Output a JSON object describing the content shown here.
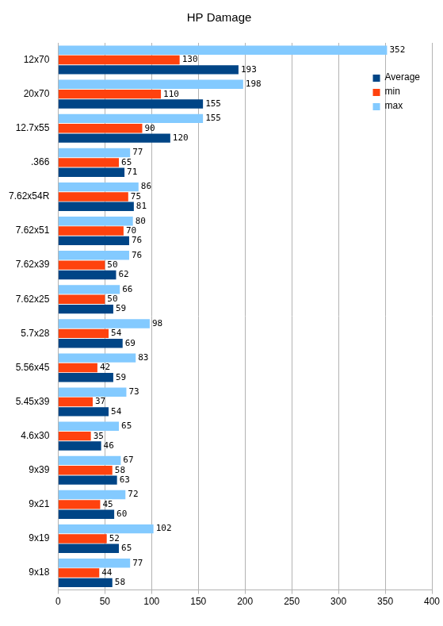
{
  "chart_data": {
    "type": "bar",
    "title": "HP Damage",
    "orientation": "horizontal",
    "categories": [
      "12x70",
      "20x70",
      "12.7x55",
      ".366",
      "7.62x54R",
      "7.62x51",
      "7.62x39",
      "7.62x25",
      "5.7x28",
      "5.56x45",
      "5.45x39",
      "4.6x30",
      "9x39",
      "9x21",
      "9x19",
      "9x18"
    ],
    "series": [
      {
        "name": "Average",
        "color": "#004586",
        "values": [
          193,
          155,
          120,
          71,
          81,
          76,
          62,
          59,
          69,
          59,
          54,
          46,
          63,
          60,
          65,
          58
        ]
      },
      {
        "name": "min",
        "color": "#ff420e",
        "values": [
          130,
          110,
          90,
          65,
          75,
          70,
          50,
          50,
          54,
          42,
          37,
          35,
          58,
          45,
          52,
          44
        ]
      },
      {
        "name": "max",
        "color": "#83caff",
        "values": [
          352,
          198,
          155,
          77,
          86,
          80,
          76,
          66,
          98,
          83,
          73,
          65,
          67,
          72,
          102,
          77
        ]
      }
    ],
    "xlim": [
      0,
      400
    ],
    "xticks": [
      0,
      50,
      100,
      150,
      200,
      250,
      300,
      350,
      400
    ],
    "grid": true,
    "legend": "top-right",
    "data_labels": true
  }
}
